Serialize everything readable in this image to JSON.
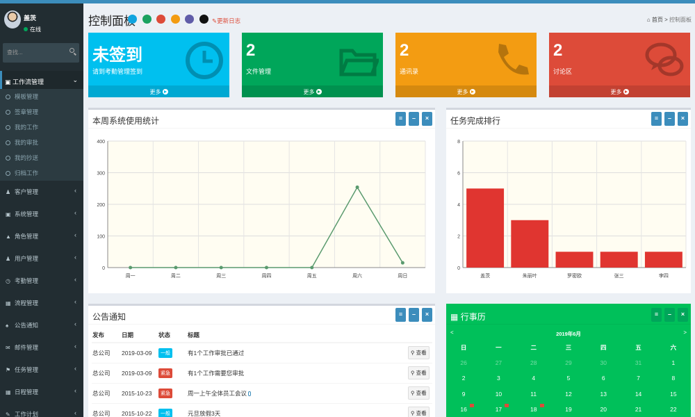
{
  "user": {
    "name": "盖茨",
    "status": "在线"
  },
  "sidebar": {
    "search_placeholder": "查找...",
    "active_menu": "工作流管理",
    "sub_items": [
      "模板管理",
      "签章管理",
      "我的工作",
      "我的审批",
      "我的抄送",
      "归档工作"
    ],
    "menu_items": [
      "客户管理",
      "系统管理",
      "角色管理",
      "用户管理",
      "考勤管理",
      "流程管理",
      "公告通知",
      "邮件管理",
      "任务管理",
      "日程管理",
      "工作计划"
    ]
  },
  "header": {
    "title": "控制面板",
    "changelog": "更新日志",
    "theme_colors": [
      "#0fa4df",
      "#1aa260",
      "#dd4b39",
      "#f39c12",
      "#605ca8",
      "#111111"
    ],
    "breadcrumb": {
      "home": "首页",
      "current": "控制面板"
    }
  },
  "info_boxes": [
    {
      "value": "未签到",
      "label": "请到考勤管理签到",
      "more": "更多",
      "color": "#00c0ef",
      "icon": "clock-icon"
    },
    {
      "value": "2",
      "label": "文件管理",
      "more": "更多",
      "color": "#00a65a",
      "icon": "folder-icon"
    },
    {
      "value": "2",
      "label": "通讯录",
      "more": "更多",
      "color": "#f39c12",
      "icon": "phone-icon"
    },
    {
      "value": "2",
      "label": "讨论区",
      "more": "更多",
      "color": "#dd4b39",
      "icon": "chat-icon"
    }
  ],
  "panels": {
    "weekly": "本周系统使用统计",
    "ranking": "任务完成排行",
    "notices": "公告通知",
    "calendar": "行事历"
  },
  "weekly_chart": {
    "categories": [
      "周一",
      "周二",
      "周三",
      "周四",
      "周五",
      "周六",
      "周日"
    ],
    "values": [
      0,
      0,
      0,
      0,
      0,
      254,
      15
    ],
    "ylim": [
      0,
      400
    ],
    "yticks": [
      0,
      100,
      200,
      300,
      400
    ],
    "color": "#5a9a6e",
    "bg": "#fffdf2"
  },
  "ranking_chart": {
    "categories": [
      "盖茨",
      "朱丽叶",
      "罗密欧",
      "张三",
      "李四"
    ],
    "values": [
      5,
      3,
      1,
      1,
      1
    ],
    "ylim": [
      0,
      8
    ],
    "yticks": [
      0,
      2,
      4,
      6,
      8
    ],
    "color": "#e03530",
    "bg": "#fffdf2"
  },
  "notices": {
    "headers": [
      "发布",
      "日期",
      "状态",
      "标题"
    ],
    "view_label": "查看",
    "rows": [
      {
        "publisher": "总公司",
        "date": "2019-03-09",
        "status": "一般",
        "status_color": "#00c0ef",
        "title": "有1个工作审批已通过",
        "clip": false
      },
      {
        "publisher": "总公司",
        "date": "2019-03-09",
        "status": "紧急",
        "status_color": "#dd4b39",
        "title": "有1个工作需要您审批",
        "clip": false
      },
      {
        "publisher": "总公司",
        "date": "2015-10-23",
        "status": "紧急",
        "status_color": "#dd4b39",
        "title": "周一上午全体员工会议",
        "clip": true
      },
      {
        "publisher": "总公司",
        "date": "2015-10-22",
        "status": "一般",
        "status_color": "#00c0ef",
        "title": "元旦放假3天",
        "clip": false
      }
    ]
  },
  "calendar": {
    "month": "2019年6月",
    "prev": "<",
    "next": ">",
    "weekdays": [
      "日",
      "一",
      "二",
      "三",
      "四",
      "五",
      "六"
    ],
    "weeks": [
      [
        "26",
        "27",
        "28",
        "29",
        "30",
        "31",
        "1"
      ],
      [
        "2",
        "3",
        "4",
        "5",
        "6",
        "7",
        "8"
      ],
      [
        "9",
        "10",
        "11",
        "12",
        "13",
        "14",
        "15"
      ],
      [
        "16",
        "17",
        "18",
        "19",
        "20",
        "21",
        "22"
      ]
    ]
  }
}
